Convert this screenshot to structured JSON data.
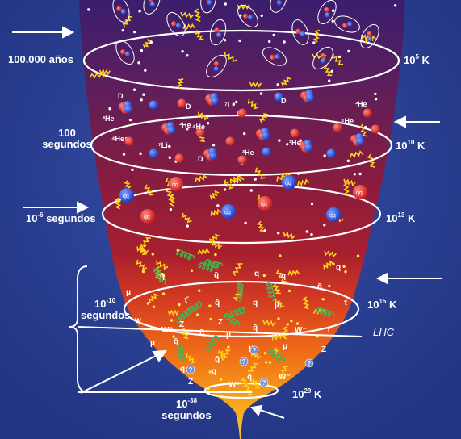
{
  "labels": {
    "time_100000": "100.000 años",
    "time_100_line1": "100",
    "time_100_line2": "segundos",
    "time_1e6_base": "10",
    "time_1e6_exp": "-6",
    "time_1e6_unit": " segundos",
    "time_1e10_base": "10",
    "time_1e10_exp": "-10",
    "time_1e10_unit": "segundos",
    "time_1e38_base": "10",
    "time_1e38_exp": "-38",
    "time_1e38_unit": "segundos",
    "temp_1e5_base": "10",
    "temp_1e5_exp": "5",
    "temp_1e5_unit": " K",
    "temp_1e10_base": "10",
    "temp_1e10_exp": "10",
    "temp_1e10_unit": " K",
    "temp_1e13_base": "10",
    "temp_1e13_exp": "13",
    "temp_1e13_unit": " K",
    "temp_1e15_base": "10",
    "temp_1e15_exp": "15",
    "temp_1e15_unit": " K",
    "temp_1e29_base": "10",
    "temp_1e29_exp": "29",
    "temp_1e29_unit": " K",
    "lhc": "LHC"
  },
  "particle_labels": {
    "deuterium": "D",
    "helium3": "³He",
    "helium4": "⁴He",
    "lithium7": "⁷Li",
    "quark": "q",
    "antiquark": "q̄",
    "muon": "μ",
    "antimuon": "μ̄",
    "tau": "τ",
    "antitau": "τ̄",
    "w_plus": "W⁺",
    "w_minus": "W⁻",
    "z_boson": "Z",
    "unknown": "?"
  },
  "colors": {
    "background": "#2a3f8f",
    "funnel_top": "#3a1f6b",
    "funnel_mid": "#8e1d3a",
    "funnel_hot": "#d6382a",
    "funnel_bottom": "#f7a21a",
    "proton": "#e0282a",
    "neutron": "#1f4fe0",
    "photon": "#ffd21a",
    "gluon": "#4caf50",
    "text": "#ffffff"
  }
}
